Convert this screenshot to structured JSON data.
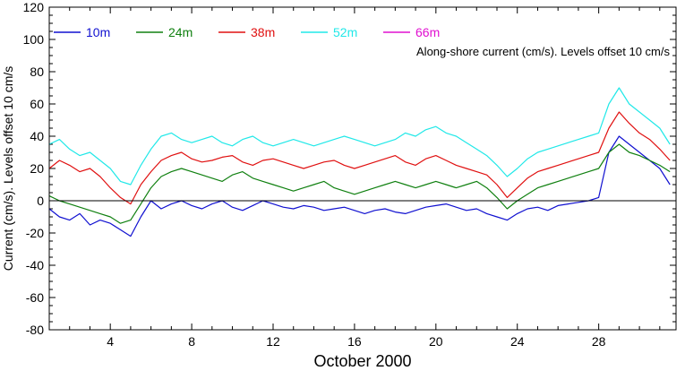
{
  "chart_data": {
    "type": "line",
    "xlabel": "October 2000",
    "ylabel": "Current (cm/s). Levels offset 10 cm/s",
    "annotation": "Along-shore current (cm/s). Levels offset 10 cm/s",
    "xlim": [
      1,
      31.8
    ],
    "ylim": [
      -80,
      120
    ],
    "xticks": [
      4,
      8,
      12,
      16,
      20,
      24,
      28
    ],
    "yticks": [
      -80,
      -60,
      -40,
      -20,
      0,
      20,
      40,
      60,
      80,
      100,
      120
    ],
    "zero_line": true,
    "legend_position": "top-left",
    "series": [
      {
        "name": "10m",
        "color": "#1010d0",
        "x": [
          1.0,
          1.5,
          2.0,
          2.5,
          3.0,
          3.5,
          4.0,
          4.5,
          5.0,
          5.5,
          6.0,
          6.5,
          7.0,
          7.5,
          8.0,
          8.5,
          9.0,
          9.5,
          10.0,
          10.5,
          11.0,
          11.5,
          12.0,
          12.5,
          13.0,
          13.5,
          14.0,
          14.5,
          15.0,
          15.5,
          16.0,
          16.5,
          17.0,
          17.5,
          18.0,
          18.5,
          19.0,
          19.5,
          20.0,
          20.5,
          21.0,
          21.5,
          22.0,
          22.5,
          23.0,
          23.5,
          24.0,
          24.5,
          25.0,
          25.5,
          26.0,
          26.5,
          27.0,
          27.5,
          28.0,
          28.5,
          29.0,
          29.5,
          30.0,
          30.5,
          31.0,
          31.5
        ],
        "y": [
          -5,
          -10,
          -12,
          -8,
          -15,
          -12,
          -14,
          -18,
          -22,
          -10,
          0,
          -5,
          -2,
          0,
          -3,
          -5,
          -2,
          0,
          -4,
          -6,
          -3,
          0,
          -2,
          -4,
          -5,
          -3,
          -4,
          -6,
          -5,
          -4,
          -6,
          -8,
          -6,
          -5,
          -7,
          -8,
          -6,
          -4,
          -3,
          -2,
          -4,
          -6,
          -5,
          -8,
          -10,
          -12,
          -8,
          -5,
          -4,
          -6,
          -3,
          -2,
          -1,
          0,
          2,
          30,
          40,
          35,
          30,
          25,
          20,
          10
        ]
      },
      {
        "name": "24m",
        "color": "#108010",
        "x": [
          1.0,
          1.5,
          2.0,
          2.5,
          3.0,
          3.5,
          4.0,
          4.5,
          5.0,
          5.5,
          6.0,
          6.5,
          7.0,
          7.5,
          8.0,
          8.5,
          9.0,
          9.5,
          10.0,
          10.5,
          11.0,
          11.5,
          12.0,
          12.5,
          13.0,
          13.5,
          14.0,
          14.5,
          15.0,
          15.5,
          16.0,
          16.5,
          17.0,
          17.5,
          18.0,
          18.5,
          19.0,
          19.5,
          20.0,
          20.5,
          21.0,
          21.5,
          22.0,
          22.5,
          23.0,
          23.5,
          24.0,
          24.5,
          25.0,
          25.5,
          26.0,
          26.5,
          27.0,
          27.5,
          28.0,
          28.5,
          29.0,
          29.5,
          30.0,
          30.5,
          31.0,
          31.5
        ],
        "y": [
          3,
          0,
          -2,
          -4,
          -6,
          -8,
          -10,
          -14,
          -12,
          -2,
          8,
          15,
          18,
          20,
          18,
          16,
          14,
          12,
          16,
          18,
          14,
          12,
          10,
          8,
          6,
          8,
          10,
          12,
          8,
          6,
          4,
          6,
          8,
          10,
          12,
          10,
          8,
          10,
          12,
          10,
          8,
          10,
          12,
          8,
          2,
          -5,
          0,
          4,
          8,
          10,
          12,
          14,
          16,
          18,
          20,
          30,
          35,
          30,
          28,
          25,
          22,
          18
        ]
      },
      {
        "name": "38m",
        "color": "#e01010",
        "x": [
          1.0,
          1.5,
          2.0,
          2.5,
          3.0,
          3.5,
          4.0,
          4.5,
          5.0,
          5.5,
          6.0,
          6.5,
          7.0,
          7.5,
          8.0,
          8.5,
          9.0,
          9.5,
          10.0,
          10.5,
          11.0,
          11.5,
          12.0,
          12.5,
          13.0,
          13.5,
          14.0,
          14.5,
          15.0,
          15.5,
          16.0,
          16.5,
          17.0,
          17.5,
          18.0,
          18.5,
          19.0,
          19.5,
          20.0,
          20.5,
          21.0,
          21.5,
          22.0,
          22.5,
          23.0,
          23.5,
          24.0,
          24.5,
          25.0,
          25.5,
          26.0,
          26.5,
          27.0,
          27.5,
          28.0,
          28.5,
          29.0,
          29.5,
          30.0,
          30.5,
          31.0,
          31.5
        ],
        "y": [
          20,
          25,
          22,
          18,
          20,
          15,
          8,
          2,
          -2,
          10,
          18,
          25,
          28,
          30,
          26,
          24,
          25,
          27,
          28,
          24,
          22,
          25,
          26,
          24,
          22,
          20,
          22,
          24,
          25,
          22,
          20,
          22,
          24,
          26,
          28,
          24,
          22,
          26,
          28,
          25,
          22,
          20,
          18,
          16,
          10,
          2,
          8,
          14,
          18,
          20,
          22,
          24,
          26,
          28,
          30,
          45,
          55,
          48,
          42,
          38,
          32,
          25
        ]
      },
      {
        "name": "52m",
        "color": "#20e8e8",
        "x": [
          1.0,
          1.5,
          2.0,
          2.5,
          3.0,
          3.5,
          4.0,
          4.5,
          5.0,
          5.5,
          6.0,
          6.5,
          7.0,
          7.5,
          8.0,
          8.5,
          9.0,
          9.5,
          10.0,
          10.5,
          11.0,
          11.5,
          12.0,
          12.5,
          13.0,
          13.5,
          14.0,
          14.5,
          15.0,
          15.5,
          16.0,
          16.5,
          17.0,
          17.5,
          18.0,
          18.5,
          19.0,
          19.5,
          20.0,
          20.5,
          21.0,
          21.5,
          22.0,
          22.5,
          23.0,
          23.5,
          24.0,
          24.5,
          25.0,
          25.5,
          26.0,
          26.5,
          27.0,
          27.5,
          28.0,
          28.5,
          29.0,
          29.5,
          30.0,
          30.5,
          31.0,
          31.5
        ],
        "y": [
          35,
          38,
          32,
          28,
          30,
          25,
          20,
          12,
          10,
          22,
          32,
          40,
          42,
          38,
          36,
          38,
          40,
          36,
          34,
          38,
          40,
          36,
          34,
          36,
          38,
          36,
          34,
          36,
          38,
          40,
          38,
          36,
          34,
          36,
          38,
          42,
          40,
          44,
          46,
          42,
          40,
          36,
          32,
          28,
          22,
          15,
          20,
          26,
          30,
          32,
          34,
          36,
          38,
          40,
          42,
          60,
          70,
          60,
          55,
          50,
          45,
          35
        ]
      },
      {
        "name": "66m",
        "color": "#e010d0",
        "x": [],
        "y": []
      }
    ]
  }
}
